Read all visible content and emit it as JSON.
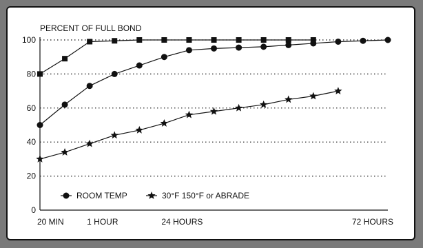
{
  "chart_data": {
    "type": "line",
    "title": "PERCENT OF FULL BOND",
    "xlabel": "",
    "ylabel": "",
    "ylim": [
      0,
      100
    ],
    "grid": "dotted horizontal",
    "y_ticks": [
      "0",
      "20",
      "40",
      "60",
      "80",
      "100"
    ],
    "x_tick_labels": [
      "20 MIN",
      "1 HOUR",
      "24 HOURS",
      "72 HOURS"
    ],
    "series": [
      {
        "marker": "square",
        "points": [
          [
            0,
            80
          ],
          [
            1,
            89
          ],
          [
            2,
            99
          ],
          [
            3,
            99.5
          ],
          [
            4,
            100
          ],
          [
            5,
            100
          ],
          [
            6,
            100
          ],
          [
            7,
            100
          ],
          [
            8,
            100
          ],
          [
            9,
            100
          ],
          [
            10,
            100
          ],
          [
            11,
            100
          ]
        ]
      },
      {
        "name": "ROOM TEMP",
        "marker": "circle",
        "points": [
          [
            0,
            50
          ],
          [
            1,
            62
          ],
          [
            2,
            73
          ],
          [
            3,
            80
          ],
          [
            4,
            85
          ],
          [
            5,
            90
          ],
          [
            6,
            94
          ],
          [
            7,
            95
          ],
          [
            8,
            95.5
          ],
          [
            9,
            96
          ],
          [
            10,
            97
          ],
          [
            11,
            98
          ],
          [
            12,
            99
          ],
          [
            13,
            99.5
          ],
          [
            14,
            100
          ]
        ]
      },
      {
        "name": "30°F 150°F or ABRADE",
        "marker": "star",
        "points": [
          [
            0,
            30
          ],
          [
            1,
            34
          ],
          [
            2,
            39
          ],
          [
            3,
            44
          ],
          [
            4,
            47
          ],
          [
            5,
            51
          ],
          [
            6,
            56
          ],
          [
            7,
            58
          ],
          [
            8,
            60
          ],
          [
            9,
            62
          ],
          [
            10,
            65
          ],
          [
            11,
            67
          ],
          [
            12,
            70
          ]
        ]
      }
    ],
    "legend_position": "bottom-left"
  }
}
